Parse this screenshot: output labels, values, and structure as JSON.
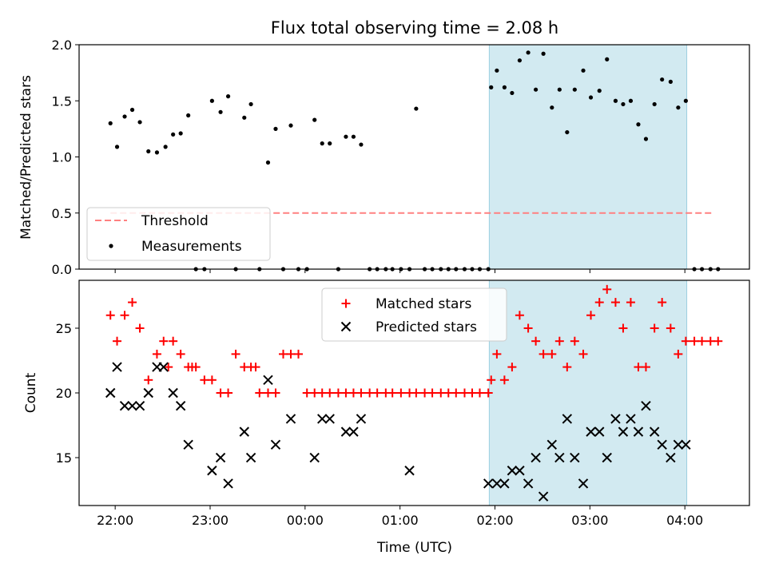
{
  "chart_data": {
    "type": "scatter",
    "title": "Flux total observing time = 2.08 h",
    "xlabel": "Time (UTC)",
    "x_tick_labels": [
      "22:00",
      "23:00",
      "00:00",
      "01:00",
      "02:00",
      "03:00",
      "04:00"
    ],
    "x_tick_hours": [
      0,
      1,
      2,
      3,
      4,
      5,
      6
    ],
    "x_origin_time": "22:00",
    "xlim_hours": [
      -0.38,
      6.68
    ],
    "shaded_span_hours": [
      3.94,
      6.02
    ],
    "colors": {
      "shade": "#add8e6",
      "threshold": "#ff8080",
      "matched": "#ff0000",
      "predicted": "#000000",
      "measurements": "#000000"
    },
    "panels": [
      {
        "name": "ratio",
        "ylabel": "Matched/Predicted stars",
        "ylim": [
          0,
          2.0
        ],
        "y_ticks": [
          0.0,
          0.5,
          1.0,
          1.5,
          2.0
        ],
        "y_tick_labels": [
          "0.0",
          "0.5",
          "1.0",
          "1.5",
          "2.0"
        ],
        "legend_position": "lower-left",
        "threshold": {
          "name": "Threshold",
          "value": 0.5,
          "x_range_hours": [
            -0.05,
            6.3
          ]
        },
        "measurements": {
          "name": "Measurements",
          "x": [
            -0.05,
            0.02,
            0.1,
            0.18,
            0.26,
            0.35,
            0.44,
            0.53,
            0.61,
            0.69,
            0.77,
            0.85,
            0.94,
            1.02,
            1.11,
            1.19,
            1.27,
            1.36,
            1.43,
            1.52,
            1.61,
            1.69,
            1.77,
            1.85,
            1.93,
            2.02,
            2.1,
            2.18,
            2.26,
            2.35,
            2.43,
            2.51,
            2.59,
            2.68,
            2.76,
            2.85,
            2.92,
            3.01,
            3.1,
            3.17,
            3.26,
            3.34,
            3.43,
            3.51,
            3.59,
            3.68,
            3.76,
            3.84,
            3.93,
            3.96,
            4.02,
            4.1,
            4.18,
            4.26,
            4.35,
            4.43,
            4.51,
            4.6,
            4.68,
            4.76,
            4.84,
            4.93,
            5.01,
            5.1,
            5.18,
            5.27,
            5.35,
            5.43,
            5.51,
            5.59,
            5.68,
            5.76,
            5.85,
            5.93,
            6.01,
            6.1,
            6.18,
            6.27,
            6.35
          ],
          "y": [
            1.3,
            1.09,
            1.36,
            1.42,
            1.31,
            1.05,
            1.04,
            1.09,
            1.2,
            1.21,
            1.37,
            0,
            0,
            1.5,
            1.4,
            1.54,
            0,
            1.35,
            1.47,
            0,
            0.95,
            1.25,
            0,
            1.28,
            0,
            0,
            1.33,
            1.12,
            1.12,
            0,
            1.18,
            1.18,
            1.11,
            0,
            0,
            0,
            0,
            0,
            0,
            1.43,
            0,
            0,
            0,
            0,
            0,
            0,
            0,
            0,
            0,
            1.62,
            1.77,
            1.62,
            1.57,
            1.86,
            1.93,
            1.6,
            1.92,
            1.44,
            1.6,
            1.22,
            1.6,
            1.77,
            1.53,
            1.59,
            1.87,
            1.5,
            1.47,
            1.5,
            1.29,
            1.16,
            1.47,
            1.69,
            1.67,
            1.44,
            1.5,
            0,
            0,
            0,
            0
          ]
        }
      },
      {
        "name": "count",
        "ylabel": "Count",
        "ylim": [
          11.3,
          28.7
        ],
        "y_ticks": [
          15,
          20,
          25
        ],
        "y_tick_labels": [
          "15",
          "20",
          "25"
        ],
        "legend_position": "upper-center",
        "matched": {
          "name": "Matched stars",
          "x": [
            -0.05,
            0.02,
            0.1,
            0.18,
            0.26,
            0.35,
            0.44,
            0.51,
            0.56,
            0.61,
            0.69,
            0.77,
            0.81,
            0.85,
            0.94,
            1.02,
            1.11,
            1.19,
            1.27,
            1.36,
            1.43,
            1.48,
            1.52,
            1.61,
            1.69,
            1.77,
            1.85,
            1.93,
            2.02,
            2.1,
            2.18,
            2.26,
            2.35,
            2.43,
            2.51,
            2.59,
            2.68,
            2.76,
            2.85,
            2.92,
            3.01,
            3.1,
            3.17,
            3.26,
            3.34,
            3.43,
            3.51,
            3.59,
            3.68,
            3.76,
            3.84,
            3.93,
            3.96,
            4.02,
            4.1,
            4.18,
            4.26,
            4.35,
            4.43,
            4.51,
            4.6,
            4.68,
            4.76,
            4.84,
            4.93,
            5.01,
            5.1,
            5.18,
            5.27,
            5.35,
            5.43,
            5.51,
            5.59,
            5.68,
            5.76,
            5.85,
            5.93,
            6.01,
            6.1,
            6.18,
            6.27,
            6.35
          ],
          "y": [
            26,
            24,
            26,
            27,
            25,
            21,
            23,
            24,
            22,
            24,
            23,
            22,
            22,
            22,
            21,
            21,
            20,
            20,
            23,
            22,
            22,
            22,
            20,
            20,
            20,
            23,
            23,
            23,
            20,
            20,
            20,
            20,
            20,
            20,
            20,
            20,
            20,
            20,
            20,
            20,
            20,
            20,
            20,
            20,
            20,
            20,
            20,
            20,
            20,
            20,
            20,
            20,
            21,
            23,
            21,
            22,
            26,
            25,
            24,
            23,
            23,
            24,
            22,
            24,
            23,
            26,
            27,
            28,
            27,
            25,
            27,
            22,
            22,
            25,
            27,
            25,
            23,
            24,
            24,
            24,
            24,
            24
          ]
        },
        "predicted": {
          "name": "Predicted stars",
          "x": [
            -0.05,
            0.02,
            0.1,
            0.18,
            0.26,
            0.35,
            0.44,
            0.51,
            0.61,
            0.69,
            0.77,
            1.02,
            1.11,
            1.19,
            1.36,
            1.43,
            1.61,
            1.69,
            1.85,
            2.1,
            2.18,
            2.26,
            2.43,
            2.51,
            2.59,
            3.1,
            3.93,
            4.02,
            4.1,
            4.18,
            4.26,
            4.35,
            4.43,
            4.51,
            4.6,
            4.68,
            4.76,
            4.84,
            4.93,
            5.01,
            5.1,
            5.18,
            5.27,
            5.35,
            5.43,
            5.51,
            5.59,
            5.68,
            5.76,
            5.85,
            5.93,
            6.01
          ],
          "y": [
            20,
            22,
            19,
            19,
            19,
            20,
            22,
            22,
            20,
            19,
            16,
            14,
            15,
            13,
            17,
            15,
            21,
            16,
            18,
            15,
            18,
            18,
            17,
            17,
            18,
            14,
            13,
            13,
            13,
            14,
            14,
            13,
            15,
            12,
            16,
            15,
            18,
            15,
            13,
            17,
            17,
            15,
            18,
            17,
            18,
            17,
            19,
            17,
            16,
            15,
            16,
            16
          ]
        }
      }
    ]
  }
}
